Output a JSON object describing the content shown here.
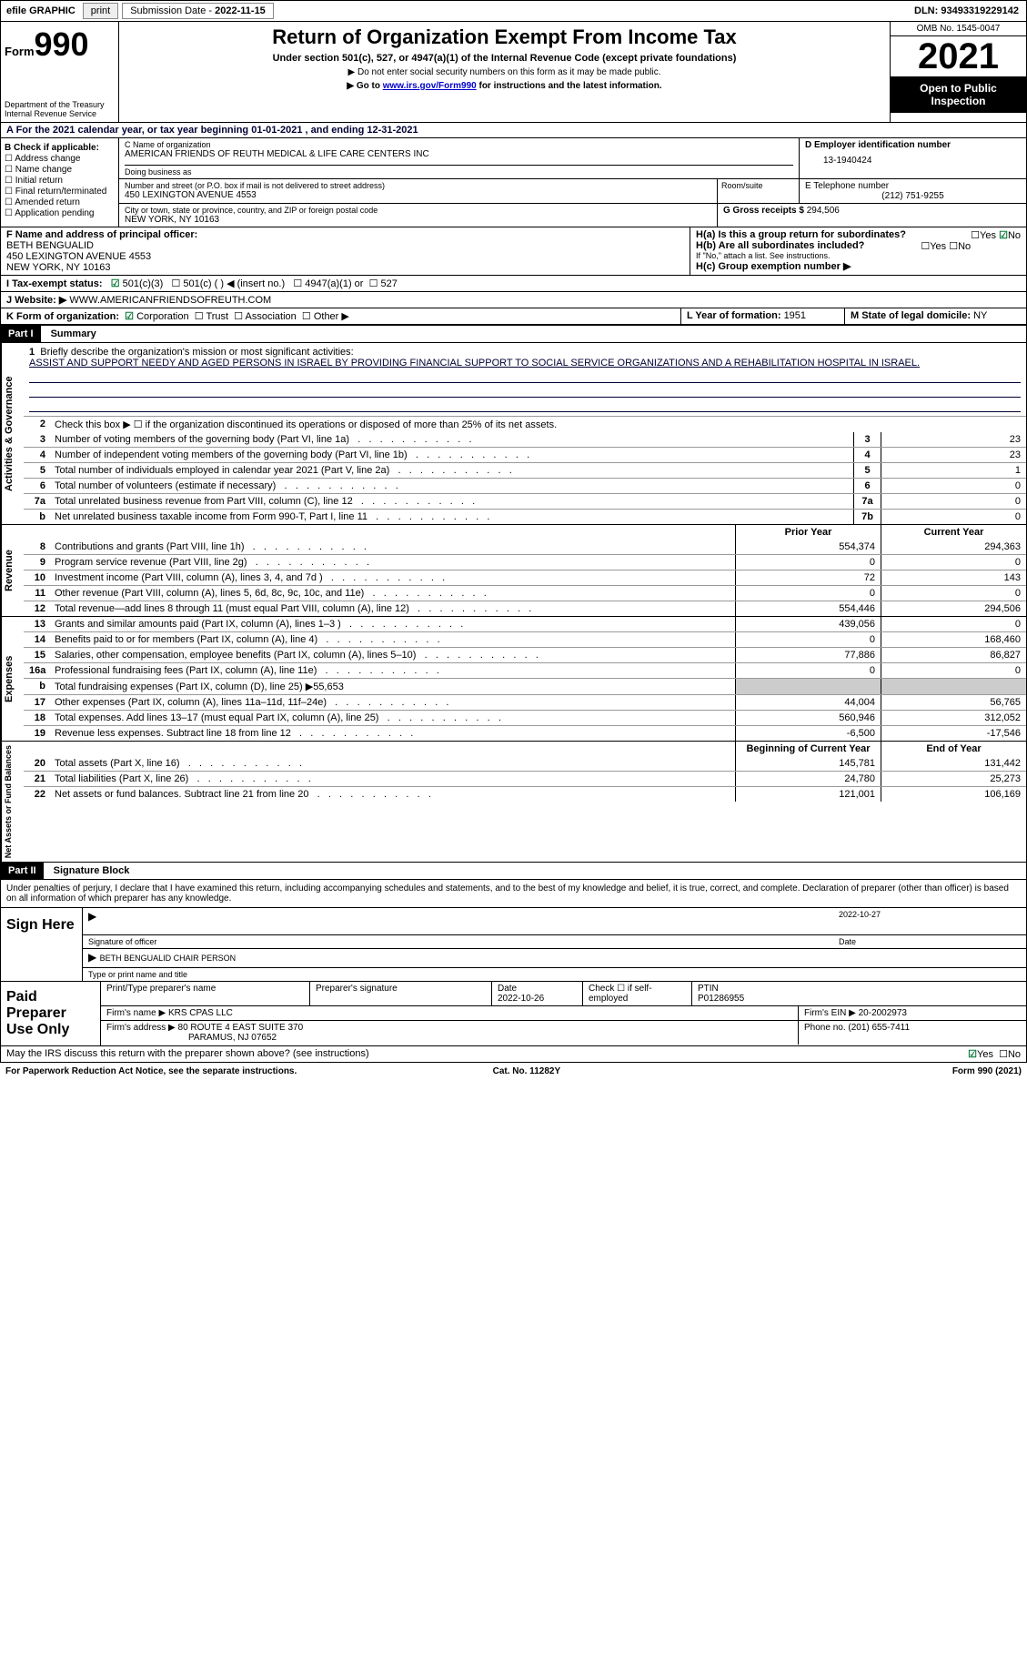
{
  "topbar": {
    "efile": "efile GRAPHIC",
    "print": "print",
    "sub_label": "Submission Date - ",
    "sub_date": "2022-11-15",
    "dln_label": "DLN: ",
    "dln": "93493319229142"
  },
  "header": {
    "form_word": "Form",
    "form_no": "990",
    "dept": "Department of the Treasury",
    "irs": "Internal Revenue Service",
    "title": "Return of Organization Exempt From Income Tax",
    "sub": "Under section 501(c), 527, or 4947(a)(1) of the Internal Revenue Code (except private foundations)",
    "note1": "▶ Do not enter social security numbers on this form as it may be made public.",
    "note2_pre": "▶ Go to ",
    "note2_link": "www.irs.gov/Form990",
    "note2_post": " for instructions and the latest information.",
    "omb": "OMB No. 1545-0047",
    "year": "2021",
    "open": "Open to Public Inspection"
  },
  "A": {
    "text_pre": "A For the 2021 calendar year, or tax year beginning ",
    "begin": "01-01-2021",
    "mid": "  , and ending ",
    "end": "12-31-2021"
  },
  "B": {
    "label": "B Check if applicable:",
    "opts": [
      "Address change",
      "Name change",
      "Initial return",
      "Final return/terminated",
      "Amended return",
      "Application pending"
    ]
  },
  "C": {
    "name_lbl": "C Name of organization",
    "name": "AMERICAN FRIENDS OF REUTH MEDICAL & LIFE CARE CENTERS INC",
    "dba_lbl": "Doing business as",
    "dba": "",
    "street_lbl": "Number and street (or P.O. box if mail is not delivered to street address)",
    "street": "450 LEXINGTON AVENUE 4553",
    "room_lbl": "Room/suite",
    "city_lbl": "City or town, state or province, country, and ZIP or foreign postal code",
    "city": "NEW YORK, NY  10163"
  },
  "D": {
    "lbl": "D Employer identification number",
    "val": "13-1940424"
  },
  "E": {
    "lbl": "E Telephone number",
    "val": "(212) 751-9255"
  },
  "G": {
    "lbl": "G Gross receipts $ ",
    "val": "294,506"
  },
  "F": {
    "lbl": "F Name and address of principal officer:",
    "name": "BETH BENGUALID",
    "addr1": "450 LEXINGTON AVENUE 4553",
    "addr2": "NEW YORK, NY  10163"
  },
  "H": {
    "a_lbl": "H(a)  Is this a group return for subordinates?",
    "a_yes": "Yes",
    "a_no": "No",
    "b_lbl": "H(b)  Are all subordinates included?",
    "b_yes": "Yes",
    "b_no": "No",
    "note": "If \"No,\" attach a list. See instructions.",
    "c_lbl": "H(c)  Group exemption number ▶"
  },
  "I": {
    "lbl": "I   Tax-exempt status:",
    "o1": "501(c)(3)",
    "o2": "501(c) (  ) ◀ (insert no.)",
    "o3": "4947(a)(1) or",
    "o4": "527"
  },
  "J": {
    "lbl": "J   Website: ▶",
    "val": "  WWW.AMERICANFRIENDSOFREUTH.COM"
  },
  "K": {
    "lbl": "K Form of organization:",
    "o1": "Corporation",
    "o2": "Trust",
    "o3": "Association",
    "o4": "Other ▶"
  },
  "L": {
    "lbl": "L Year of formation: ",
    "val": "1951"
  },
  "M": {
    "lbl": "M State of legal domicile: ",
    "val": "NY"
  },
  "part1": {
    "hdr": "Part I",
    "title": "Summary",
    "l1_lbl": "Briefly describe the organization's mission or most significant activities:",
    "l1_val": "ASSIST AND SUPPORT NEEDY AND AGED PERSONS IN ISRAEL BY PROVIDING FINANCIAL SUPPORT TO SOCIAL SERVICE ORGANIZATIONS AND A REHABILITATION HOSPITAL IN ISRAEL.",
    "l2": "Check this box ▶ ☐  if the organization discontinued its operations or disposed of more than 25% of its net assets.",
    "vtabs": [
      "Activities & Governance",
      "Revenue",
      "Expenses",
      "Net Assets or Fund Balances"
    ],
    "col_prior": "Prior Year",
    "col_curr": "Current Year",
    "col_beg": "Beginning of Current Year",
    "col_end": "End of Year",
    "rows_gov": [
      {
        "n": "3",
        "t": "Number of voting members of the governing body (Part VI, line 1a)",
        "box": "3",
        "v": "23"
      },
      {
        "n": "4",
        "t": "Number of independent voting members of the governing body (Part VI, line 1b)",
        "box": "4",
        "v": "23"
      },
      {
        "n": "5",
        "t": "Total number of individuals employed in calendar year 2021 (Part V, line 2a)",
        "box": "5",
        "v": "1"
      },
      {
        "n": "6",
        "t": "Total number of volunteers (estimate if necessary)",
        "box": "6",
        "v": "0"
      },
      {
        "n": "7a",
        "t": "Total unrelated business revenue from Part VIII, column (C), line 12",
        "box": "7a",
        "v": "0"
      },
      {
        "n": "b",
        "t": "Net unrelated business taxable income from Form 990-T, Part I, line 11",
        "box": "7b",
        "v": "0"
      }
    ],
    "rows_rev": [
      {
        "n": "8",
        "t": "Contributions and grants (Part VIII, line 1h)",
        "p": "554,374",
        "c": "294,363"
      },
      {
        "n": "9",
        "t": "Program service revenue (Part VIII, line 2g)",
        "p": "0",
        "c": "0"
      },
      {
        "n": "10",
        "t": "Investment income (Part VIII, column (A), lines 3, 4, and 7d )",
        "p": "72",
        "c": "143"
      },
      {
        "n": "11",
        "t": "Other revenue (Part VIII, column (A), lines 5, 6d, 8c, 9c, 10c, and 11e)",
        "p": "0",
        "c": "0"
      },
      {
        "n": "12",
        "t": "Total revenue—add lines 8 through 11 (must equal Part VIII, column (A), line 12)",
        "p": "554,446",
        "c": "294,506"
      }
    ],
    "rows_exp": [
      {
        "n": "13",
        "t": "Grants and similar amounts paid (Part IX, column (A), lines 1–3 )",
        "p": "439,056",
        "c": "0"
      },
      {
        "n": "14",
        "t": "Benefits paid to or for members (Part IX, column (A), line 4)",
        "p": "0",
        "c": "168,460"
      },
      {
        "n": "15",
        "t": "Salaries, other compensation, employee benefits (Part IX, column (A), lines 5–10)",
        "p": "77,886",
        "c": "86,827"
      },
      {
        "n": "16a",
        "t": "Professional fundraising fees (Part IX, column (A), line 11e)",
        "p": "0",
        "c": "0"
      },
      {
        "n": "b",
        "t": "Total fundraising expenses (Part IX, column (D), line 25) ▶55,653",
        "shade": true
      },
      {
        "n": "17",
        "t": "Other expenses (Part IX, column (A), lines 11a–11d, 11f–24e)",
        "p": "44,004",
        "c": "56,765"
      },
      {
        "n": "18",
        "t": "Total expenses. Add lines 13–17 (must equal Part IX, column (A), line 25)",
        "p": "560,946",
        "c": "312,052"
      },
      {
        "n": "19",
        "t": "Revenue less expenses. Subtract line 18 from line 12",
        "p": "-6,500",
        "c": "-17,546"
      }
    ],
    "rows_net": [
      {
        "n": "20",
        "t": "Total assets (Part X, line 16)",
        "p": "145,781",
        "c": "131,442"
      },
      {
        "n": "21",
        "t": "Total liabilities (Part X, line 26)",
        "p": "24,780",
        "c": "25,273"
      },
      {
        "n": "22",
        "t": "Net assets or fund balances. Subtract line 21 from line 20",
        "p": "121,001",
        "c": "106,169"
      }
    ]
  },
  "part2": {
    "hdr": "Part II",
    "title": "Signature Block",
    "declare": "Under penalties of perjury, I declare that I have examined this return, including accompanying schedules and statements, and to the best of my knowledge and belief, it is true, correct, and complete. Declaration of preparer (other than officer) is based on all information of which preparer has any knowledge.",
    "sign_here": "Sign Here",
    "sig_officer": "Signature of officer",
    "sig_date": "2022-10-27",
    "date_lbl": "Date",
    "typed_name": "BETH BENGUALID  CHAIR PERSON",
    "typed_lbl": "Type or print name and title",
    "paid": "Paid Preparer Use Only",
    "pp_name_lbl": "Print/Type preparer's name",
    "pp_sig_lbl": "Preparer's signature",
    "pp_date_lbl": "Date",
    "pp_date": "2022-10-26",
    "pp_check": "Check ☐ if self-employed",
    "ptin_lbl": "PTIN",
    "ptin": "P01286955",
    "firm_name_lbl": "Firm's name  ▶ ",
    "firm_name": "KRS CPAS LLC",
    "firm_ein_lbl": "Firm's EIN ▶ ",
    "firm_ein": "20-2002973",
    "firm_addr_lbl": "Firm's address ▶ ",
    "firm_addr1": "80 ROUTE 4 EAST SUITE 370",
    "firm_addr2": "PARAMUS, NJ  07652",
    "phone_lbl": "Phone no. ",
    "phone": "(201) 655-7411",
    "discuss": "May the IRS discuss this return with the preparer shown above? (see instructions)",
    "discuss_yes": "Yes",
    "discuss_no": "No"
  },
  "footer": {
    "left": "For Paperwork Reduction Act Notice, see the separate instructions.",
    "mid": "Cat. No. 11282Y",
    "right": "Form 990 (2021)"
  },
  "colors": {
    "accent": "#003366",
    "checked": "#0a7a3a"
  }
}
